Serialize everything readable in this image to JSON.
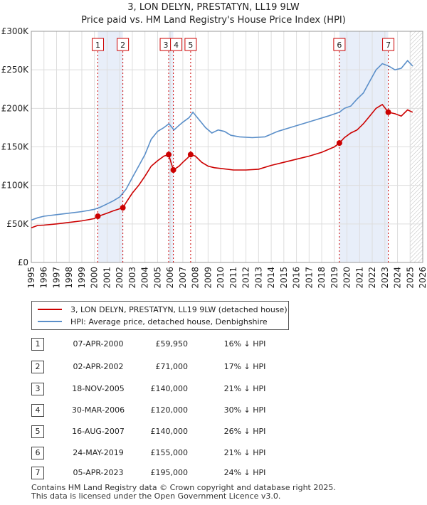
{
  "title_line1": "3, LON DELYN, PRESTATYN, LL19 9LW",
  "title_line2": "Price paid vs. HM Land Registry's House Price Index (HPI)",
  "legend": {
    "property": "3, LON DELYN, PRESTATYN, LL19 9LW (detached house)",
    "hpi": "HPI: Average price, detached house, Denbighshire"
  },
  "sales": [
    {
      "num": "1",
      "date": "07-APR-2000",
      "price": "£59,950",
      "hpi": "16% ↓ HPI"
    },
    {
      "num": "2",
      "date": "02-APR-2002",
      "price": "£71,000",
      "hpi": "17% ↓ HPI"
    },
    {
      "num": "3",
      "date": "18-NOV-2005",
      "price": "£140,000",
      "hpi": "21% ↓ HPI"
    },
    {
      "num": "4",
      "date": "30-MAR-2006",
      "price": "£120,000",
      "hpi": "30% ↓ HPI"
    },
    {
      "num": "5",
      "date": "16-AUG-2007",
      "price": "£140,000",
      "hpi": "26% ↓ HPI"
    },
    {
      "num": "6",
      "date": "24-MAY-2019",
      "price": "£155,000",
      "hpi": "21% ↓ HPI"
    },
    {
      "num": "7",
      "date": "05-APR-2023",
      "price": "£195,000",
      "hpi": "24% ↓ HPI"
    }
  ],
  "footer_line1": "Contains HM Land Registry data © Crown copyright and database right 2025.",
  "footer_line2": "This data is licensed under the Open Government Licence v3.0.",
  "colors": {
    "property": "#cc0000",
    "hpi": "#5b8fc9",
    "shade": "#e8eef9",
    "grid": "#dddddd"
  },
  "chart_data": {
    "type": "line",
    "xlim": [
      1995,
      2026
    ],
    "ylim": [
      0,
      300000
    ],
    "y_ticks": [
      0,
      50000,
      100000,
      150000,
      200000,
      250000,
      300000
    ],
    "y_tick_labels": [
      "£0",
      "£50K",
      "£100K",
      "£150K",
      "£200K",
      "£250K",
      "£300K"
    ],
    "x_ticks": [
      1995,
      1996,
      1997,
      1998,
      1999,
      2000,
      2001,
      2002,
      2003,
      2004,
      2005,
      2006,
      2007,
      2008,
      2009,
      2010,
      2011,
      2012,
      2013,
      2014,
      2015,
      2016,
      2017,
      2018,
      2019,
      2020,
      2021,
      2022,
      2023,
      2024,
      2025,
      2026
    ],
    "x_tick_labels": [
      "1995",
      "1996",
      "1997",
      "1998",
      "1999",
      "2000",
      "2001",
      "2002",
      "2003",
      "2004",
      "2005",
      "2006",
      "2007",
      "2008",
      "2009",
      "2010",
      "2011",
      "2012",
      "2013",
      "2014",
      "2015",
      "2016",
      "2017",
      "2018",
      "2019",
      "2020",
      "2021",
      "2022",
      "2023",
      "2024",
      "2025",
      "2026"
    ],
    "shaded_periods": [
      [
        2000.27,
        2002.25
      ],
      [
        2005.88,
        2006.25
      ],
      [
        2019.4,
        2023.27
      ]
    ],
    "hatch_from": 2025.0,
    "series": [
      {
        "name": "HPI: Average price, detached house, Denbighshire",
        "points": [
          [
            1995.0,
            55000
          ],
          [
            1995.5,
            58000
          ],
          [
            1996.0,
            60000
          ],
          [
            1997.0,
            62000
          ],
          [
            1998.0,
            64000
          ],
          [
            1999.0,
            66000
          ],
          [
            2000.0,
            69000
          ],
          [
            2000.5,
            72000
          ],
          [
            2001.0,
            76000
          ],
          [
            2001.5,
            80000
          ],
          [
            2002.0,
            85000
          ],
          [
            2002.5,
            95000
          ],
          [
            2003.0,
            110000
          ],
          [
            2003.5,
            125000
          ],
          [
            2004.0,
            140000
          ],
          [
            2004.5,
            160000
          ],
          [
            2005.0,
            170000
          ],
          [
            2005.5,
            175000
          ],
          [
            2005.9,
            180000
          ],
          [
            2006.3,
            172000
          ],
          [
            2006.7,
            178000
          ],
          [
            2007.0,
            182000
          ],
          [
            2007.5,
            188000
          ],
          [
            2007.8,
            195000
          ],
          [
            2008.3,
            185000
          ],
          [
            2008.8,
            175000
          ],
          [
            2009.3,
            168000
          ],
          [
            2009.8,
            172000
          ],
          [
            2010.3,
            170000
          ],
          [
            2010.8,
            165000
          ],
          [
            2011.5,
            163000
          ],
          [
            2012.5,
            162000
          ],
          [
            2013.5,
            163000
          ],
          [
            2014.5,
            170000
          ],
          [
            2015.5,
            175000
          ],
          [
            2016.5,
            180000
          ],
          [
            2017.5,
            185000
          ],
          [
            2018.5,
            190000
          ],
          [
            2019.4,
            195000
          ],
          [
            2019.8,
            200000
          ],
          [
            2020.3,
            203000
          ],
          [
            2020.8,
            212000
          ],
          [
            2021.3,
            220000
          ],
          [
            2021.8,
            235000
          ],
          [
            2022.3,
            250000
          ],
          [
            2022.8,
            258000
          ],
          [
            2023.3,
            255000
          ],
          [
            2023.8,
            250000
          ],
          [
            2024.3,
            252000
          ],
          [
            2024.8,
            262000
          ],
          [
            2025.2,
            255000
          ]
        ]
      },
      {
        "name": "3, LON DELYN, PRESTATYN, LL19 9LW (detached house)",
        "points": [
          [
            1995.0,
            45000
          ],
          [
            1995.5,
            48000
          ],
          [
            1996.0,
            48500
          ],
          [
            1997.0,
            50000
          ],
          [
            1998.0,
            52000
          ],
          [
            1999.0,
            54000
          ],
          [
            2000.0,
            57000
          ],
          [
            2000.27,
            59950
          ],
          [
            2000.5,
            61000
          ],
          [
            2001.0,
            64000
          ],
          [
            2001.5,
            67000
          ],
          [
            2002.25,
            71000
          ],
          [
            2002.6,
            80000
          ],
          [
            2003.0,
            90000
          ],
          [
            2003.5,
            100000
          ],
          [
            2004.0,
            112000
          ],
          [
            2004.5,
            125000
          ],
          [
            2005.0,
            132000
          ],
          [
            2005.5,
            138000
          ],
          [
            2005.88,
            140000
          ],
          [
            2006.1,
            128000
          ],
          [
            2006.25,
            120000
          ],
          [
            2006.7,
            125000
          ],
          [
            2007.0,
            130000
          ],
          [
            2007.4,
            136000
          ],
          [
            2007.62,
            140000
          ],
          [
            2008.0,
            138000
          ],
          [
            2008.5,
            130000
          ],
          [
            2009.0,
            125000
          ],
          [
            2009.5,
            123000
          ],
          [
            2010.0,
            122000
          ],
          [
            2011.0,
            120000
          ],
          [
            2012.0,
            120000
          ],
          [
            2013.0,
            121000
          ],
          [
            2014.0,
            126000
          ],
          [
            2015.0,
            130000
          ],
          [
            2016.0,
            134000
          ],
          [
            2017.0,
            138000
          ],
          [
            2018.0,
            143000
          ],
          [
            2019.0,
            150000
          ],
          [
            2019.4,
            155000
          ],
          [
            2019.8,
            162000
          ],
          [
            2020.3,
            168000
          ],
          [
            2020.8,
            172000
          ],
          [
            2021.3,
            180000
          ],
          [
            2021.8,
            190000
          ],
          [
            2022.3,
            200000
          ],
          [
            2022.8,
            205000
          ],
          [
            2023.27,
            195000
          ],
          [
            2023.8,
            193000
          ],
          [
            2024.3,
            190000
          ],
          [
            2024.8,
            198000
          ],
          [
            2025.2,
            195000
          ]
        ]
      }
    ],
    "sale_points": [
      {
        "label": "1",
        "x": 2000.27,
        "y": 59950
      },
      {
        "label": "2",
        "x": 2002.25,
        "y": 71000
      },
      {
        "label": "3",
        "x": 2005.88,
        "y": 140000
      },
      {
        "label": "4",
        "x": 2006.25,
        "y": 120000
      },
      {
        "label": "5",
        "x": 2007.62,
        "y": 140000
      },
      {
        "label": "6",
        "x": 2019.4,
        "y": 155000
      },
      {
        "label": "7",
        "x": 2023.27,
        "y": 195000
      }
    ]
  }
}
